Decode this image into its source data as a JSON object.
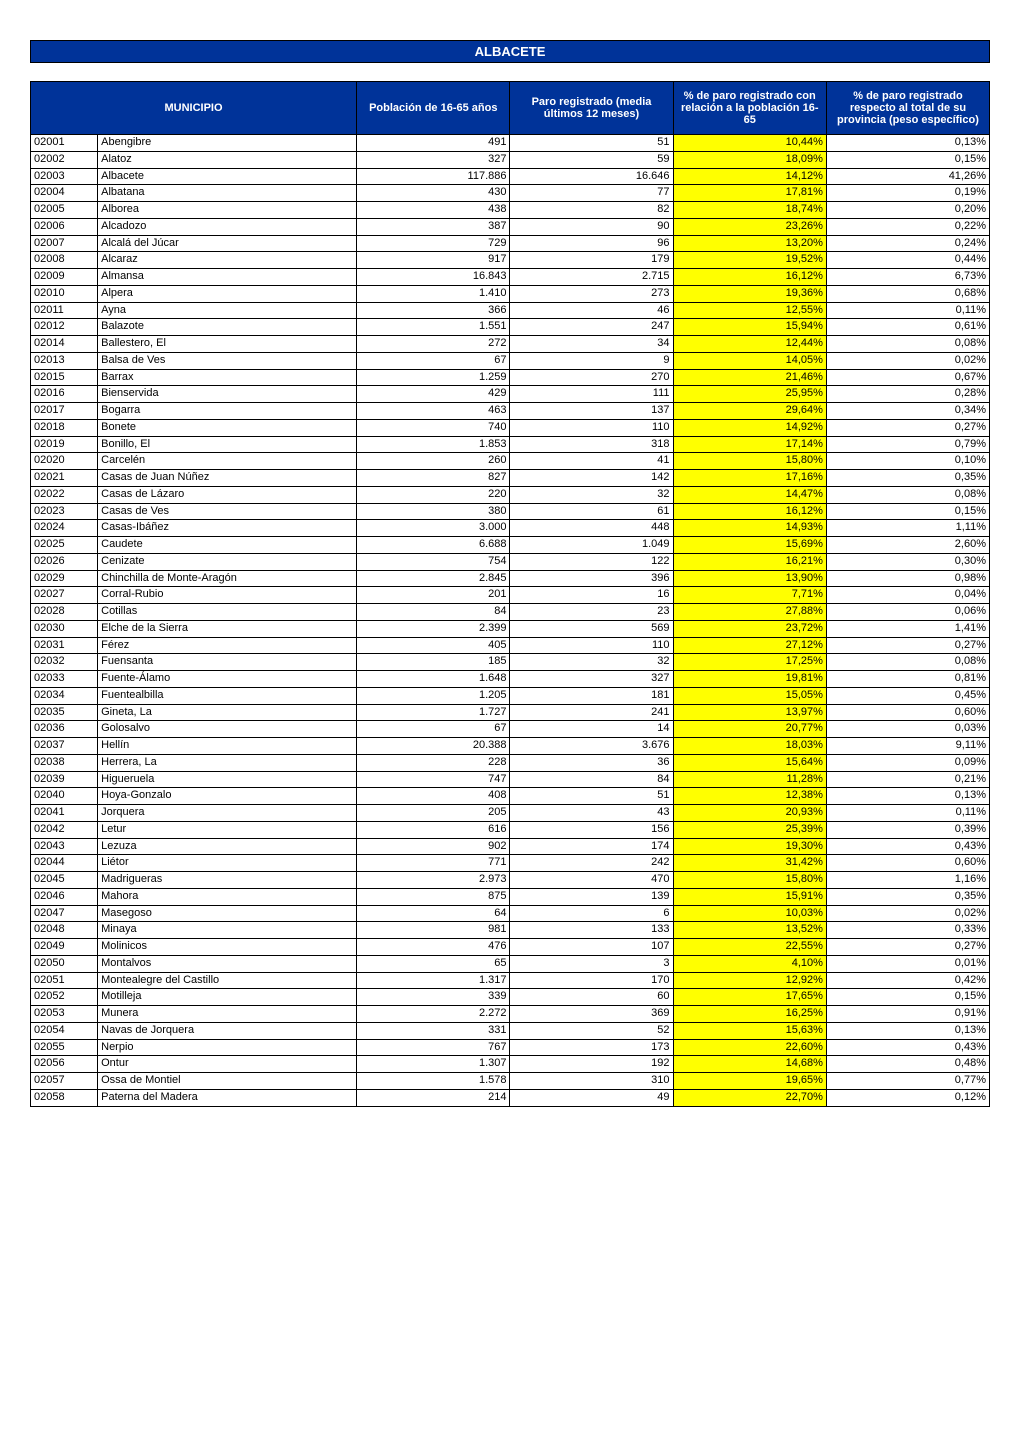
{
  "title": "ALBACETE",
  "headers": {
    "municipio": "MUNICIPIO",
    "poblacion": "Población de 16-65 años",
    "paro_registrado": "Paro registrado (media últimos 12 meses)",
    "pct_paro_poblacion": "% de paro registrado con relación a la población 16-65",
    "pct_paro_provincia": "% de paro registrado respecto al total de su provincia (peso específico)"
  },
  "colors": {
    "header_bg": "#003399",
    "header_text": "#ffffff",
    "highlight": "#ffff00",
    "border": "#000000",
    "cell_bg": "#ffffff"
  },
  "table": {
    "column_widths": [
      "7%",
      "27%",
      "16%",
      "17%",
      "16%",
      "17%"
    ],
    "font_size": 11,
    "header_font_size": 11
  },
  "rows": [
    {
      "code": "02001",
      "name": "Abengibre",
      "pop": "491",
      "paro": "51",
      "pct1": "10,44%",
      "pct2": "0,13%",
      "hl": true
    },
    {
      "code": "02002",
      "name": "Alatoz",
      "pop": "327",
      "paro": "59",
      "pct1": "18,09%",
      "pct2": "0,15%",
      "hl": true
    },
    {
      "code": "02003",
      "name": "Albacete",
      "pop": "117.886",
      "paro": "16.646",
      "pct1": "14,12%",
      "pct2": "41,26%",
      "hl": true
    },
    {
      "code": "02004",
      "name": "Albatana",
      "pop": "430",
      "paro": "77",
      "pct1": "17,81%",
      "pct2": "0,19%",
      "hl": true
    },
    {
      "code": "02005",
      "name": "Alborea",
      "pop": "438",
      "paro": "82",
      "pct1": "18,74%",
      "pct2": "0,20%",
      "hl": true
    },
    {
      "code": "02006",
      "name": "Alcadozo",
      "pop": "387",
      "paro": "90",
      "pct1": "23,26%",
      "pct2": "0,22%",
      "hl": true
    },
    {
      "code": "02007",
      "name": "Alcalá del Júcar",
      "pop": "729",
      "paro": "96",
      "pct1": "13,20%",
      "pct2": "0,24%",
      "hl": true
    },
    {
      "code": "02008",
      "name": "Alcaraz",
      "pop": "917",
      "paro": "179",
      "pct1": "19,52%",
      "pct2": "0,44%",
      "hl": true
    },
    {
      "code": "02009",
      "name": "Almansa",
      "pop": "16.843",
      "paro": "2.715",
      "pct1": "16,12%",
      "pct2": "6,73%",
      "hl": true
    },
    {
      "code": "02010",
      "name": "Alpera",
      "pop": "1.410",
      "paro": "273",
      "pct1": "19,36%",
      "pct2": "0,68%",
      "hl": true
    },
    {
      "code": "02011",
      "name": "Ayna",
      "pop": "366",
      "paro": "46",
      "pct1": "12,55%",
      "pct2": "0,11%",
      "hl": true
    },
    {
      "code": "02012",
      "name": "Balazote",
      "pop": "1.551",
      "paro": "247",
      "pct1": "15,94%",
      "pct2": "0,61%",
      "hl": true
    },
    {
      "code": "02014",
      "name": "Ballestero, El",
      "pop": "272",
      "paro": "34",
      "pct1": "12,44%",
      "pct2": "0,08%",
      "hl": true
    },
    {
      "code": "02013",
      "name": "Balsa de Ves",
      "pop": "67",
      "paro": "9",
      "pct1": "14,05%",
      "pct2": "0,02%",
      "hl": true
    },
    {
      "code": "02015",
      "name": "Barrax",
      "pop": "1.259",
      "paro": "270",
      "pct1": "21,46%",
      "pct2": "0,67%",
      "hl": true
    },
    {
      "code": "02016",
      "name": "Bienservida",
      "pop": "429",
      "paro": "111",
      "pct1": "25,95%",
      "pct2": "0,28%",
      "hl": true
    },
    {
      "code": "02017",
      "name": "Bogarra",
      "pop": "463",
      "paro": "137",
      "pct1": "29,64%",
      "pct2": "0,34%",
      "hl": true
    },
    {
      "code": "02018",
      "name": "Bonete",
      "pop": "740",
      "paro": "110",
      "pct1": "14,92%",
      "pct2": "0,27%",
      "hl": true
    },
    {
      "code": "02019",
      "name": "Bonillo, El",
      "pop": "1.853",
      "paro": "318",
      "pct1": "17,14%",
      "pct2": "0,79%",
      "hl": true
    },
    {
      "code": "02020",
      "name": "Carcelén",
      "pop": "260",
      "paro": "41",
      "pct1": "15,80%",
      "pct2": "0,10%",
      "hl": true
    },
    {
      "code": "02021",
      "name": "Casas de Juan Núñez",
      "pop": "827",
      "paro": "142",
      "pct1": "17,16%",
      "pct2": "0,35%",
      "hl": true
    },
    {
      "code": "02022",
      "name": "Casas de Lázaro",
      "pop": "220",
      "paro": "32",
      "pct1": "14,47%",
      "pct2": "0,08%",
      "hl": true
    },
    {
      "code": "02023",
      "name": "Casas de Ves",
      "pop": "380",
      "paro": "61",
      "pct1": "16,12%",
      "pct2": "0,15%",
      "hl": true
    },
    {
      "code": "02024",
      "name": "Casas-Ibáñez",
      "pop": "3.000",
      "paro": "448",
      "pct1": "14,93%",
      "pct2": "1,11%",
      "hl": true
    },
    {
      "code": "02025",
      "name": "Caudete",
      "pop": "6.688",
      "paro": "1.049",
      "pct1": "15,69%",
      "pct2": "2,60%",
      "hl": true
    },
    {
      "code": "02026",
      "name": "Cenizate",
      "pop": "754",
      "paro": "122",
      "pct1": "16,21%",
      "pct2": "0,30%",
      "hl": true
    },
    {
      "code": "02029",
      "name": "Chinchilla de Monte-Aragón",
      "pop": "2.845",
      "paro": "396",
      "pct1": "13,90%",
      "pct2": "0,98%",
      "hl": true
    },
    {
      "code": "02027",
      "name": "Corral-Rubio",
      "pop": "201",
      "paro": "16",
      "pct1": "7,71%",
      "pct2": "0,04%",
      "hl": true
    },
    {
      "code": "02028",
      "name": "Cotillas",
      "pop": "84",
      "paro": "23",
      "pct1": "27,88%",
      "pct2": "0,06%",
      "hl": true
    },
    {
      "code": "02030",
      "name": "Elche de la Sierra",
      "pop": "2.399",
      "paro": "569",
      "pct1": "23,72%",
      "pct2": "1,41%",
      "hl": true
    },
    {
      "code": "02031",
      "name": "Férez",
      "pop": "405",
      "paro": "110",
      "pct1": "27,12%",
      "pct2": "0,27%",
      "hl": true
    },
    {
      "code": "02032",
      "name": "Fuensanta",
      "pop": "185",
      "paro": "32",
      "pct1": "17,25%",
      "pct2": "0,08%",
      "hl": true
    },
    {
      "code": "02033",
      "name": "Fuente-Álamo",
      "pop": "1.648",
      "paro": "327",
      "pct1": "19,81%",
      "pct2": "0,81%",
      "hl": true
    },
    {
      "code": "02034",
      "name": "Fuentealbilla",
      "pop": "1.205",
      "paro": "181",
      "pct1": "15,05%",
      "pct2": "0,45%",
      "hl": true
    },
    {
      "code": "02035",
      "name": "Gineta, La",
      "pop": "1.727",
      "paro": "241",
      "pct1": "13,97%",
      "pct2": "0,60%",
      "hl": true
    },
    {
      "code": "02036",
      "name": "Golosalvo",
      "pop": "67",
      "paro": "14",
      "pct1": "20,77%",
      "pct2": "0,03%",
      "hl": true
    },
    {
      "code": "02037",
      "name": "Hellín",
      "pop": "20.388",
      "paro": "3.676",
      "pct1": "18,03%",
      "pct2": "9,11%",
      "hl": true
    },
    {
      "code": "02038",
      "name": "Herrera, La",
      "pop": "228",
      "paro": "36",
      "pct1": "15,64%",
      "pct2": "0,09%",
      "hl": true
    },
    {
      "code": "02039",
      "name": "Higueruela",
      "pop": "747",
      "paro": "84",
      "pct1": "11,28%",
      "pct2": "0,21%",
      "hl": true
    },
    {
      "code": "02040",
      "name": "Hoya-Gonzalo",
      "pop": "408",
      "paro": "51",
      "pct1": "12,38%",
      "pct2": "0,13%",
      "hl": true
    },
    {
      "code": "02041",
      "name": "Jorquera",
      "pop": "205",
      "paro": "43",
      "pct1": "20,93%",
      "pct2": "0,11%",
      "hl": true
    },
    {
      "code": "02042",
      "name": "Letur",
      "pop": "616",
      "paro": "156",
      "pct1": "25,39%",
      "pct2": "0,39%",
      "hl": true
    },
    {
      "code": "02043",
      "name": "Lezuza",
      "pop": "902",
      "paro": "174",
      "pct1": "19,30%",
      "pct2": "0,43%",
      "hl": true
    },
    {
      "code": "02044",
      "name": "Liétor",
      "pop": "771",
      "paro": "242",
      "pct1": "31,42%",
      "pct2": "0,60%",
      "hl": true
    },
    {
      "code": "02045",
      "name": "Madrigueras",
      "pop": "2.973",
      "paro": "470",
      "pct1": "15,80%",
      "pct2": "1,16%",
      "hl": true
    },
    {
      "code": "02046",
      "name": "Mahora",
      "pop": "875",
      "paro": "139",
      "pct1": "15,91%",
      "pct2": "0,35%",
      "hl": true
    },
    {
      "code": "02047",
      "name": "Masegoso",
      "pop": "64",
      "paro": "6",
      "pct1": "10,03%",
      "pct2": "0,02%",
      "hl": true
    },
    {
      "code": "02048",
      "name": "Minaya",
      "pop": "981",
      "paro": "133",
      "pct1": "13,52%",
      "pct2": "0,33%",
      "hl": true
    },
    {
      "code": "02049",
      "name": "Molinicos",
      "pop": "476",
      "paro": "107",
      "pct1": "22,55%",
      "pct2": "0,27%",
      "hl": true
    },
    {
      "code": "02050",
      "name": "Montalvos",
      "pop": "65",
      "paro": "3",
      "pct1": "4,10%",
      "pct2": "0,01%",
      "hl": true
    },
    {
      "code": "02051",
      "name": "Montealegre del Castillo",
      "pop": "1.317",
      "paro": "170",
      "pct1": "12,92%",
      "pct2": "0,42%",
      "hl": true
    },
    {
      "code": "02052",
      "name": "Motilleja",
      "pop": "339",
      "paro": "60",
      "pct1": "17,65%",
      "pct2": "0,15%",
      "hl": true
    },
    {
      "code": "02053",
      "name": "Munera",
      "pop": "2.272",
      "paro": "369",
      "pct1": "16,25%",
      "pct2": "0,91%",
      "hl": true
    },
    {
      "code": "02054",
      "name": "Navas de Jorquera",
      "pop": "331",
      "paro": "52",
      "pct1": "15,63%",
      "pct2": "0,13%",
      "hl": true
    },
    {
      "code": "02055",
      "name": "Nerpio",
      "pop": "767",
      "paro": "173",
      "pct1": "22,60%",
      "pct2": "0,43%",
      "hl": true
    },
    {
      "code": "02056",
      "name": "Ontur",
      "pop": "1.307",
      "paro": "192",
      "pct1": "14,68%",
      "pct2": "0,48%",
      "hl": true
    },
    {
      "code": "02057",
      "name": "Ossa de Montiel",
      "pop": "1.578",
      "paro": "310",
      "pct1": "19,65%",
      "pct2": "0,77%",
      "hl": true
    },
    {
      "code": "02058",
      "name": "Paterna del Madera",
      "pop": "214",
      "paro": "49",
      "pct1": "22,70%",
      "pct2": "0,12%",
      "hl": true
    }
  ]
}
